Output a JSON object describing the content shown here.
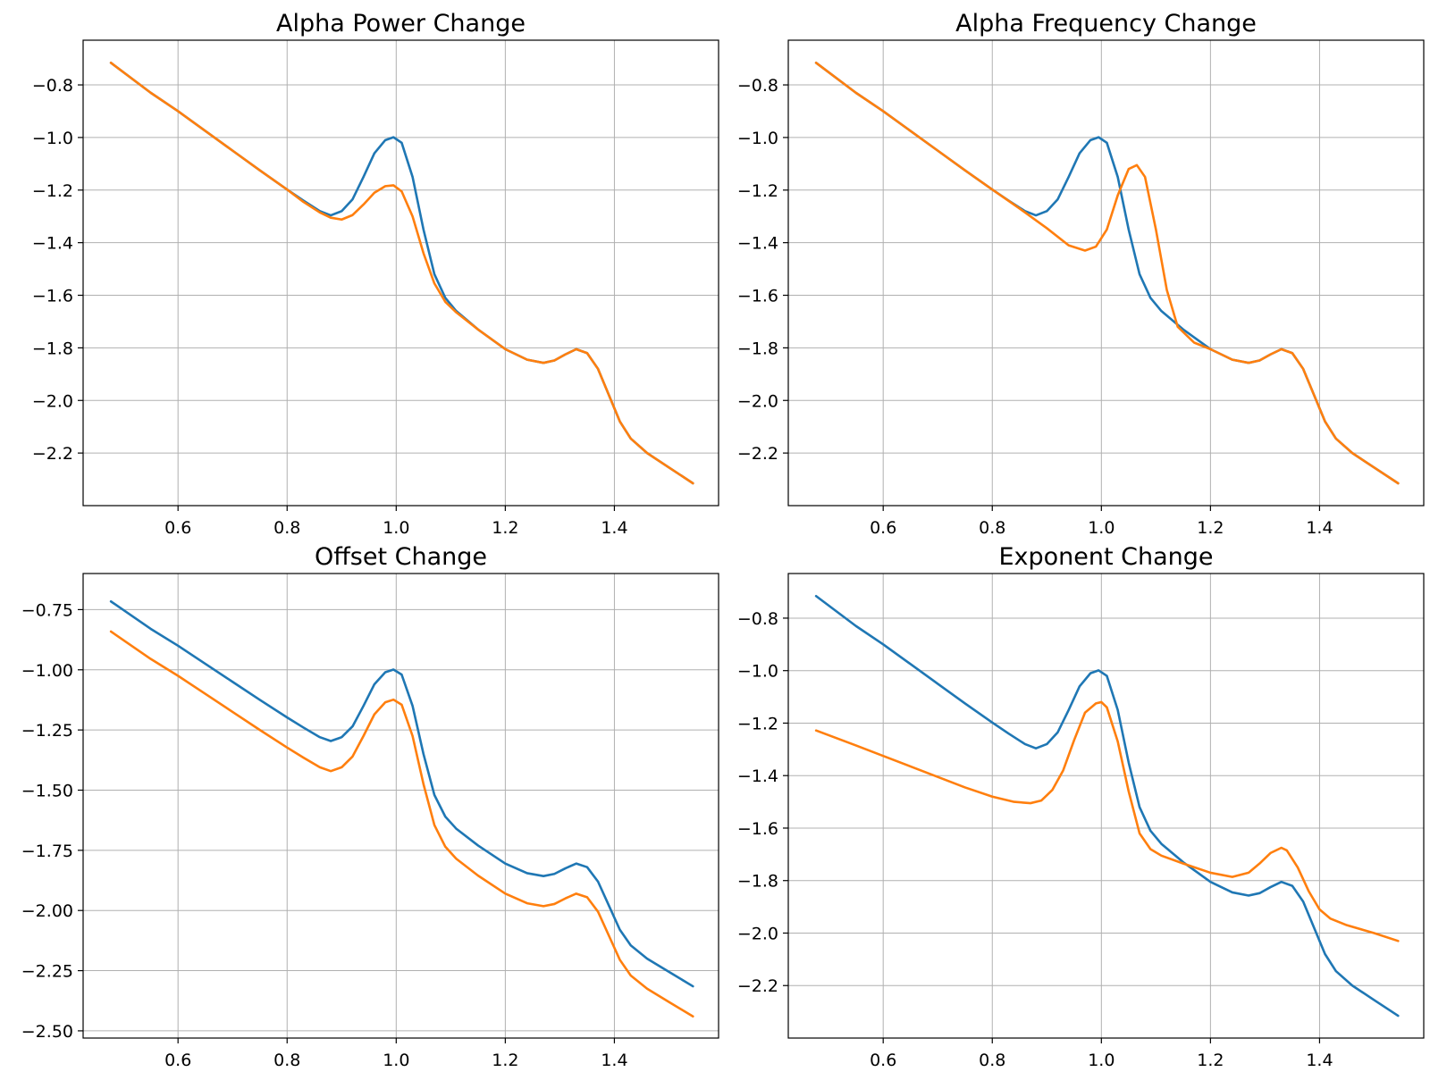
{
  "colors": {
    "series_a": "#1f77b4",
    "series_b": "#ff7f0e",
    "grid": "#b0b0b0"
  },
  "chart_data": [
    {
      "type": "line",
      "title": "Alpha Power Change",
      "xlabel": "",
      "ylabel": "",
      "grid": true,
      "xlim": [
        0.426,
        1.591
      ],
      "ylim": [
        -2.4,
        -0.63
      ],
      "xticks": [
        0.6,
        0.8,
        1.0,
        1.2,
        1.4
      ],
      "xtick_labels": [
        "0.6",
        "0.8",
        "1.0",
        "1.2",
        "1.4"
      ],
      "yticks": [
        -0.8,
        -1.0,
        -1.2,
        -1.4,
        -1.6,
        -1.8,
        -2.0,
        -2.2
      ],
      "ytick_labels": [
        "−0.8",
        "−1.0",
        "−1.2",
        "−1.4",
        "−1.6",
        "−1.8",
        "−2.0",
        "−2.2"
      ],
      "series": [
        {
          "x": [
            0.477,
            0.55,
            0.6,
            0.65,
            0.7,
            0.75,
            0.8,
            0.83,
            0.86,
            0.88,
            0.9,
            0.92,
            0.94,
            0.96,
            0.98,
            0.995,
            1.01,
            1.03,
            1.05,
            1.07,
            1.09,
            1.11,
            1.15,
            1.2,
            1.24,
            1.27,
            1.29,
            1.31,
            1.33,
            1.35,
            1.37,
            1.39,
            1.41,
            1.43,
            1.46,
            1.5,
            1.544
          ],
          "y": [
            -0.716,
            -0.83,
            -0.9,
            -0.975,
            -1.05,
            -1.125,
            -1.198,
            -1.24,
            -1.28,
            -1.296,
            -1.28,
            -1.235,
            -1.15,
            -1.06,
            -1.01,
            -0.999,
            -1.02,
            -1.15,
            -1.35,
            -1.52,
            -1.61,
            -1.66,
            -1.73,
            -1.805,
            -1.845,
            -1.857,
            -1.848,
            -1.825,
            -1.805,
            -1.82,
            -1.88,
            -1.98,
            -2.08,
            -2.145,
            -2.2,
            -2.255,
            -2.315
          ]
        },
        {
          "x": [
            0.477,
            0.55,
            0.6,
            0.65,
            0.7,
            0.75,
            0.8,
            0.83,
            0.86,
            0.88,
            0.9,
            0.92,
            0.94,
            0.96,
            0.98,
            0.995,
            1.01,
            1.03,
            1.05,
            1.07,
            1.09,
            1.11,
            1.15,
            1.2,
            1.24,
            1.27,
            1.29,
            1.31,
            1.33,
            1.35,
            1.37,
            1.39,
            1.41,
            1.43,
            1.46,
            1.5,
            1.544
          ],
          "y": [
            -0.716,
            -0.83,
            -0.9,
            -0.975,
            -1.05,
            -1.125,
            -1.198,
            -1.245,
            -1.285,
            -1.305,
            -1.312,
            -1.295,
            -1.255,
            -1.21,
            -1.185,
            -1.182,
            -1.205,
            -1.3,
            -1.44,
            -1.555,
            -1.625,
            -1.665,
            -1.73,
            -1.805,
            -1.845,
            -1.857,
            -1.848,
            -1.825,
            -1.805,
            -1.82,
            -1.88,
            -1.98,
            -2.08,
            -2.145,
            -2.2,
            -2.255,
            -2.315
          ]
        }
      ]
    },
    {
      "type": "line",
      "title": "Alpha Frequency Change",
      "xlabel": "",
      "ylabel": "",
      "grid": true,
      "xlim": [
        0.426,
        1.591
      ],
      "ylim": [
        -2.4,
        -0.63
      ],
      "xticks": [
        0.6,
        0.8,
        1.0,
        1.2,
        1.4
      ],
      "xtick_labels": [
        "0.6",
        "0.8",
        "1.0",
        "1.2",
        "1.4"
      ],
      "yticks": [
        -0.8,
        -1.0,
        -1.2,
        -1.4,
        -1.6,
        -1.8,
        -2.0,
        -2.2
      ],
      "ytick_labels": [
        "−0.8",
        "−1.0",
        "−1.2",
        "−1.4",
        "−1.6",
        "−1.8",
        "−2.0",
        "−2.2"
      ],
      "series": [
        {
          "x": [
            0.477,
            0.55,
            0.6,
            0.65,
            0.7,
            0.75,
            0.8,
            0.83,
            0.86,
            0.88,
            0.9,
            0.92,
            0.94,
            0.96,
            0.98,
            0.995,
            1.01,
            1.03,
            1.05,
            1.07,
            1.09,
            1.11,
            1.15,
            1.2,
            1.24,
            1.27,
            1.29,
            1.31,
            1.33,
            1.35,
            1.37,
            1.39,
            1.41,
            1.43,
            1.46,
            1.5,
            1.544
          ],
          "y": [
            -0.716,
            -0.83,
            -0.9,
            -0.975,
            -1.05,
            -1.125,
            -1.198,
            -1.24,
            -1.28,
            -1.296,
            -1.28,
            -1.235,
            -1.15,
            -1.06,
            -1.01,
            -0.999,
            -1.02,
            -1.15,
            -1.35,
            -1.52,
            -1.61,
            -1.66,
            -1.73,
            -1.805,
            -1.845,
            -1.857,
            -1.848,
            -1.825,
            -1.805,
            -1.82,
            -1.88,
            -1.98,
            -2.08,
            -2.145,
            -2.2,
            -2.255,
            -2.315
          ]
        },
        {
          "x": [
            0.477,
            0.55,
            0.6,
            0.65,
            0.7,
            0.75,
            0.8,
            0.85,
            0.9,
            0.94,
            0.97,
            0.99,
            1.01,
            1.03,
            1.05,
            1.065,
            1.08,
            1.1,
            1.12,
            1.14,
            1.17,
            1.2,
            1.24,
            1.27,
            1.29,
            1.31,
            1.33,
            1.35,
            1.37,
            1.39,
            1.41,
            1.43,
            1.46,
            1.5,
            1.544
          ],
          "y": [
            -0.716,
            -0.83,
            -0.9,
            -0.975,
            -1.05,
            -1.125,
            -1.198,
            -1.27,
            -1.345,
            -1.41,
            -1.43,
            -1.415,
            -1.35,
            -1.22,
            -1.12,
            -1.105,
            -1.15,
            -1.35,
            -1.58,
            -1.72,
            -1.78,
            -1.805,
            -1.845,
            -1.857,
            -1.848,
            -1.825,
            -1.805,
            -1.82,
            -1.88,
            -1.98,
            -2.08,
            -2.145,
            -2.2,
            -2.255,
            -2.315
          ]
        }
      ]
    },
    {
      "type": "line",
      "title": "Offset Change",
      "xlabel": "",
      "ylabel": "",
      "grid": true,
      "xlim": [
        0.426,
        1.591
      ],
      "ylim": [
        -2.53,
        -0.6
      ],
      "xticks": [
        0.6,
        0.8,
        1.0,
        1.2,
        1.4
      ],
      "xtick_labels": [
        "0.6",
        "0.8",
        "1.0",
        "1.2",
        "1.4"
      ],
      "yticks": [
        -0.75,
        -1.0,
        -1.25,
        -1.5,
        -1.75,
        -2.0,
        -2.25,
        -2.5
      ],
      "ytick_labels": [
        "−0.75",
        "−1.00",
        "−1.25",
        "−1.50",
        "−1.75",
        "−2.00",
        "−2.25",
        "−2.50"
      ],
      "series": [
        {
          "x": [
            0.477,
            0.55,
            0.6,
            0.65,
            0.7,
            0.75,
            0.8,
            0.83,
            0.86,
            0.88,
            0.9,
            0.92,
            0.94,
            0.96,
            0.98,
            0.995,
            1.01,
            1.03,
            1.05,
            1.07,
            1.09,
            1.11,
            1.15,
            1.2,
            1.24,
            1.27,
            1.29,
            1.31,
            1.33,
            1.35,
            1.37,
            1.39,
            1.41,
            1.43,
            1.46,
            1.5,
            1.544
          ],
          "y": [
            -0.716,
            -0.83,
            -0.9,
            -0.975,
            -1.05,
            -1.125,
            -1.198,
            -1.24,
            -1.28,
            -1.296,
            -1.28,
            -1.235,
            -1.15,
            -1.06,
            -1.01,
            -0.999,
            -1.02,
            -1.15,
            -1.35,
            -1.52,
            -1.61,
            -1.66,
            -1.73,
            -1.805,
            -1.845,
            -1.857,
            -1.848,
            -1.825,
            -1.805,
            -1.82,
            -1.88,
            -1.98,
            -2.08,
            -2.145,
            -2.2,
            -2.255,
            -2.315
          ]
        },
        {
          "x": [
            0.477,
            0.55,
            0.6,
            0.65,
            0.7,
            0.75,
            0.8,
            0.83,
            0.86,
            0.88,
            0.9,
            0.92,
            0.94,
            0.96,
            0.98,
            0.995,
            1.01,
            1.03,
            1.05,
            1.07,
            1.09,
            1.11,
            1.15,
            1.2,
            1.24,
            1.27,
            1.29,
            1.31,
            1.33,
            1.35,
            1.37,
            1.39,
            1.41,
            1.43,
            1.46,
            1.5,
            1.544
          ],
          "y": [
            -0.841,
            -0.955,
            -1.025,
            -1.1,
            -1.175,
            -1.25,
            -1.323,
            -1.365,
            -1.405,
            -1.421,
            -1.405,
            -1.36,
            -1.275,
            -1.185,
            -1.135,
            -1.124,
            -1.145,
            -1.275,
            -1.475,
            -1.645,
            -1.735,
            -1.785,
            -1.855,
            -1.93,
            -1.97,
            -1.982,
            -1.973,
            -1.95,
            -1.93,
            -1.945,
            -2.005,
            -2.105,
            -2.205,
            -2.27,
            -2.325,
            -2.38,
            -2.44
          ]
        }
      ]
    },
    {
      "type": "line",
      "title": "Exponent Change",
      "xlabel": "",
      "ylabel": "",
      "grid": true,
      "xlim": [
        0.426,
        1.591
      ],
      "ylim": [
        -2.4,
        -0.63
      ],
      "xticks": [
        0.6,
        0.8,
        1.0,
        1.2,
        1.4
      ],
      "xtick_labels": [
        "0.6",
        "0.8",
        "1.0",
        "1.2",
        "1.4"
      ],
      "yticks": [
        -0.8,
        -1.0,
        -1.2,
        -1.4,
        -1.6,
        -1.8,
        -2.0,
        -2.2
      ],
      "ytick_labels": [
        "−0.8",
        "−1.0",
        "−1.2",
        "−1.4",
        "−1.6",
        "−1.8",
        "−2.0",
        "−2.2"
      ],
      "series": [
        {
          "x": [
            0.477,
            0.55,
            0.6,
            0.65,
            0.7,
            0.75,
            0.8,
            0.83,
            0.86,
            0.88,
            0.9,
            0.92,
            0.94,
            0.96,
            0.98,
            0.995,
            1.01,
            1.03,
            1.05,
            1.07,
            1.09,
            1.11,
            1.15,
            1.2,
            1.24,
            1.27,
            1.29,
            1.31,
            1.33,
            1.35,
            1.37,
            1.39,
            1.41,
            1.43,
            1.46,
            1.5,
            1.544
          ],
          "y": [
            -0.716,
            -0.83,
            -0.9,
            -0.975,
            -1.05,
            -1.125,
            -1.198,
            -1.24,
            -1.28,
            -1.296,
            -1.28,
            -1.235,
            -1.15,
            -1.06,
            -1.01,
            -0.999,
            -1.02,
            -1.15,
            -1.35,
            -1.52,
            -1.61,
            -1.66,
            -1.73,
            -1.805,
            -1.845,
            -1.857,
            -1.848,
            -1.825,
            -1.805,
            -1.82,
            -1.88,
            -1.98,
            -2.08,
            -2.145,
            -2.2,
            -2.255,
            -2.315
          ]
        },
        {
          "x": [
            0.477,
            0.55,
            0.6,
            0.65,
            0.7,
            0.75,
            0.8,
            0.84,
            0.87,
            0.89,
            0.91,
            0.93,
            0.95,
            0.97,
            0.99,
            1.0,
            1.01,
            1.03,
            1.05,
            1.07,
            1.09,
            1.11,
            1.15,
            1.2,
            1.24,
            1.27,
            1.29,
            1.31,
            1.33,
            1.34,
            1.36,
            1.38,
            1.4,
            1.42,
            1.45,
            1.5,
            1.544
          ],
          "y": [
            -1.228,
            -1.285,
            -1.325,
            -1.365,
            -1.405,
            -1.445,
            -1.48,
            -1.5,
            -1.505,
            -1.495,
            -1.455,
            -1.38,
            -1.265,
            -1.16,
            -1.125,
            -1.12,
            -1.14,
            -1.27,
            -1.46,
            -1.62,
            -1.68,
            -1.705,
            -1.735,
            -1.77,
            -1.786,
            -1.77,
            -1.735,
            -1.695,
            -1.675,
            -1.685,
            -1.75,
            -1.84,
            -1.91,
            -1.945,
            -1.97,
            -2.0,
            -2.03
          ]
        }
      ]
    }
  ]
}
